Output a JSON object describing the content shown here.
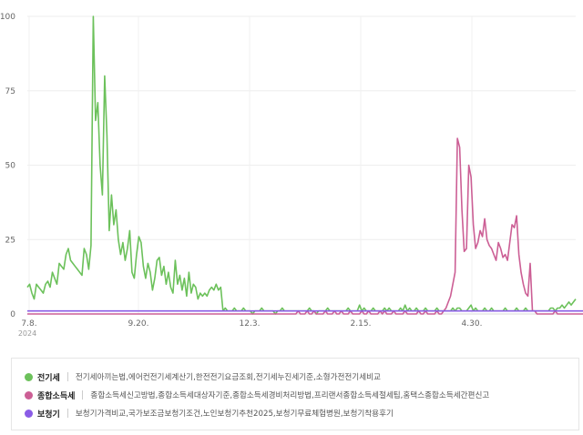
{
  "chart_data": {
    "type": "line",
    "ylim": [
      0,
      100
    ],
    "y_ticks": [
      "0",
      "25",
      "50",
      "75",
      "100"
    ],
    "x_ticks": [
      "7.8.",
      "9.20.",
      "12.3.",
      "2.15.",
      "4.30."
    ],
    "x_start_label_year": "2024",
    "grid": true,
    "series": [
      {
        "name": "전기세",
        "color": "#6cc15b",
        "values": [
          9,
          10,
          7,
          5,
          10,
          9,
          8,
          7,
          10,
          11,
          9,
          14,
          12,
          10,
          17,
          16,
          15,
          20,
          22,
          18,
          17,
          16,
          15,
          14,
          13,
          22,
          20,
          15,
          23,
          100,
          65,
          71,
          50,
          40,
          80,
          60,
          28,
          40,
          30,
          35,
          25,
          20,
          24,
          18,
          22,
          28,
          14,
          12,
          20,
          26,
          24,
          16,
          12,
          17,
          14,
          8,
          12,
          18,
          19,
          13,
          16,
          10,
          14,
          9,
          7,
          18,
          10,
          13,
          8,
          12,
          6,
          14,
          7,
          10,
          9,
          5,
          7,
          6,
          7,
          6,
          8,
          9,
          8,
          10,
          8,
          9,
          1,
          2,
          1,
          1,
          1,
          2,
          1,
          1,
          1,
          2,
          1,
          1,
          1,
          0,
          1,
          1,
          1,
          2,
          1,
          1,
          1,
          1,
          1,
          0,
          1,
          1,
          2,
          1,
          1,
          1,
          1,
          1,
          1,
          1,
          1,
          1,
          1,
          1,
          2,
          1,
          1,
          0,
          1,
          1,
          1,
          1,
          2,
          1,
          1,
          1,
          1,
          1,
          1,
          1,
          1,
          2,
          1,
          1,
          1,
          1,
          3,
          1,
          2,
          1,
          1,
          1,
          2,
          1,
          1,
          1,
          1,
          2,
          1,
          2,
          1,
          1,
          1,
          1,
          2,
          1,
          3,
          1,
          2,
          1,
          1,
          2,
          1,
          1,
          1,
          2,
          1,
          1,
          1,
          1,
          2,
          1,
          1,
          1,
          1,
          1,
          1,
          2,
          1,
          2,
          2,
          1,
          1,
          1,
          2,
          3,
          1,
          2,
          1,
          1,
          1,
          2,
          1,
          1,
          2,
          1,
          1,
          1,
          1,
          1,
          2,
          1,
          1,
          1,
          1,
          2,
          1,
          1,
          1,
          2,
          1,
          1,
          1,
          1,
          1,
          1,
          1,
          1,
          1,
          1,
          2,
          2,
          1,
          2,
          2,
          3,
          2,
          3,
          4,
          3,
          4,
          5
        ]
      },
      {
        "name": "종합소득세",
        "color": "#cc5f95",
        "values": [
          0,
          0,
          0,
          0,
          0,
          0,
          0,
          0,
          0,
          0,
          0,
          0,
          0,
          0,
          0,
          0,
          0,
          0,
          0,
          0,
          0,
          0,
          0,
          0,
          0,
          0,
          0,
          0,
          0,
          0,
          0,
          0,
          0,
          0,
          0,
          0,
          0,
          0,
          0,
          0,
          0,
          0,
          0,
          0,
          0,
          0,
          0,
          0,
          0,
          0,
          0,
          0,
          0,
          0,
          0,
          0,
          0,
          0,
          0,
          0,
          0,
          0,
          0,
          0,
          0,
          0,
          0,
          0,
          0,
          0,
          0,
          0,
          0,
          0,
          0,
          0,
          0,
          0,
          0,
          0,
          0,
          0,
          0,
          0,
          0,
          0,
          0,
          0,
          0,
          0,
          0,
          0,
          0,
          0,
          0,
          0,
          0,
          0,
          0,
          0,
          0,
          0,
          0,
          0,
          0,
          0,
          0,
          0,
          0,
          0,
          0,
          0,
          0,
          0,
          0,
          0,
          0,
          0,
          0,
          1,
          0,
          0,
          0,
          1,
          0,
          0,
          1,
          0,
          0,
          0,
          0,
          1,
          0,
          0,
          0,
          1,
          0,
          0,
          1,
          0,
          0,
          0,
          1,
          0,
          0,
          0,
          0,
          1,
          0,
          0,
          1,
          0,
          0,
          0,
          0,
          1,
          0,
          1,
          0,
          0,
          0,
          1,
          0,
          0,
          0,
          0,
          1,
          0,
          0,
          0,
          0,
          0,
          1,
          0,
          0,
          1,
          0,
          0,
          0,
          0,
          1,
          0,
          0,
          1,
          2,
          4,
          6,
          10,
          14,
          59,
          56,
          35,
          21,
          22,
          50,
          46,
          30,
          22,
          24,
          28,
          26,
          32,
          25,
          23,
          22,
          20,
          18,
          24,
          22,
          19,
          20,
          18,
          24,
          30,
          29,
          33,
          20,
          14,
          10,
          7,
          6,
          17,
          1,
          1,
          0,
          0,
          0,
          0,
          0,
          0,
          0,
          0,
          1,
          0,
          0,
          0,
          0,
          0,
          0,
          0,
          0,
          0,
          0,
          0,
          0,
          0,
          0,
          0
        ]
      },
      {
        "name": "보청기",
        "color": "#8a5ce6",
        "values": [
          1,
          1,
          1,
          1,
          1,
          1,
          1,
          1,
          1,
          1,
          1,
          1,
          1,
          1,
          1,
          1,
          1,
          1,
          1,
          1,
          1,
          1,
          1,
          1,
          1,
          1,
          1,
          1,
          1,
          1,
          1,
          1,
          1,
          1,
          1,
          1,
          1,
          1,
          1,
          1,
          1,
          1,
          1,
          1,
          1,
          1,
          1,
          1,
          1,
          1,
          1,
          1,
          1,
          1,
          1,
          1,
          1,
          1,
          1,
          1,
          1,
          1,
          1,
          1,
          1,
          1,
          1,
          1,
          1,
          1,
          1,
          1,
          1,
          1,
          1,
          1,
          1,
          1,
          1,
          1,
          1,
          1,
          1,
          1,
          1,
          1,
          1,
          1,
          1,
          1,
          1,
          1,
          1,
          1,
          1,
          1,
          1,
          1,
          1,
          1,
          1,
          1,
          1,
          1,
          1,
          1,
          1,
          1,
          1,
          1,
          1,
          1,
          1,
          1,
          1,
          1,
          1,
          1,
          1,
          1,
          1,
          1,
          1,
          1,
          1,
          1,
          1,
          1,
          1,
          1,
          1,
          1,
          1,
          1,
          1,
          1,
          1,
          1,
          1,
          1,
          1,
          1,
          1,
          1,
          1,
          1,
          1,
          1,
          1,
          1,
          1,
          1,
          1,
          1,
          1,
          1,
          1,
          1,
          1,
          1,
          1,
          1,
          1,
          1,
          1,
          1,
          1,
          1,
          1,
          1,
          1,
          1,
          1,
          1,
          1,
          1,
          1,
          1,
          1,
          1,
          1,
          1,
          1,
          1,
          1,
          1,
          1,
          1,
          1,
          1,
          1,
          1,
          1,
          1,
          1,
          1,
          1,
          1,
          1,
          1,
          1,
          1,
          1,
          1,
          1,
          1,
          1,
          1,
          1,
          1,
          1,
          1,
          1,
          1,
          1,
          1,
          1,
          1,
          1,
          1,
          1,
          1,
          1,
          1,
          1,
          1,
          1,
          1,
          1,
          1,
          1,
          1,
          1,
          1,
          1,
          1,
          1,
          1,
          1,
          1,
          1,
          1,
          1,
          1,
          1,
          1
        ]
      }
    ]
  },
  "legend": [
    {
      "name": "전기세",
      "color": "#6cc15b",
      "keywords": "전기세아끼는법,에어컨전기세계산기,한전전기요금조회,전기세누진세기준,소형가전전기세비교"
    },
    {
      "name": "종합소득세",
      "color": "#cc5f95",
      "keywords": "종합소득세신고방법,종합소득세대상자기준,종합소득세경비처리방법,프리랜서종합소득세절세팁,홈택스종합소득세간편신고"
    },
    {
      "name": "보청기",
      "color": "#8a5ce6",
      "keywords": "보청기가격비교,국가보조금보청기조건,노인보청기추천2025,보청기무료체험병원,보청기착용후기"
    }
  ]
}
